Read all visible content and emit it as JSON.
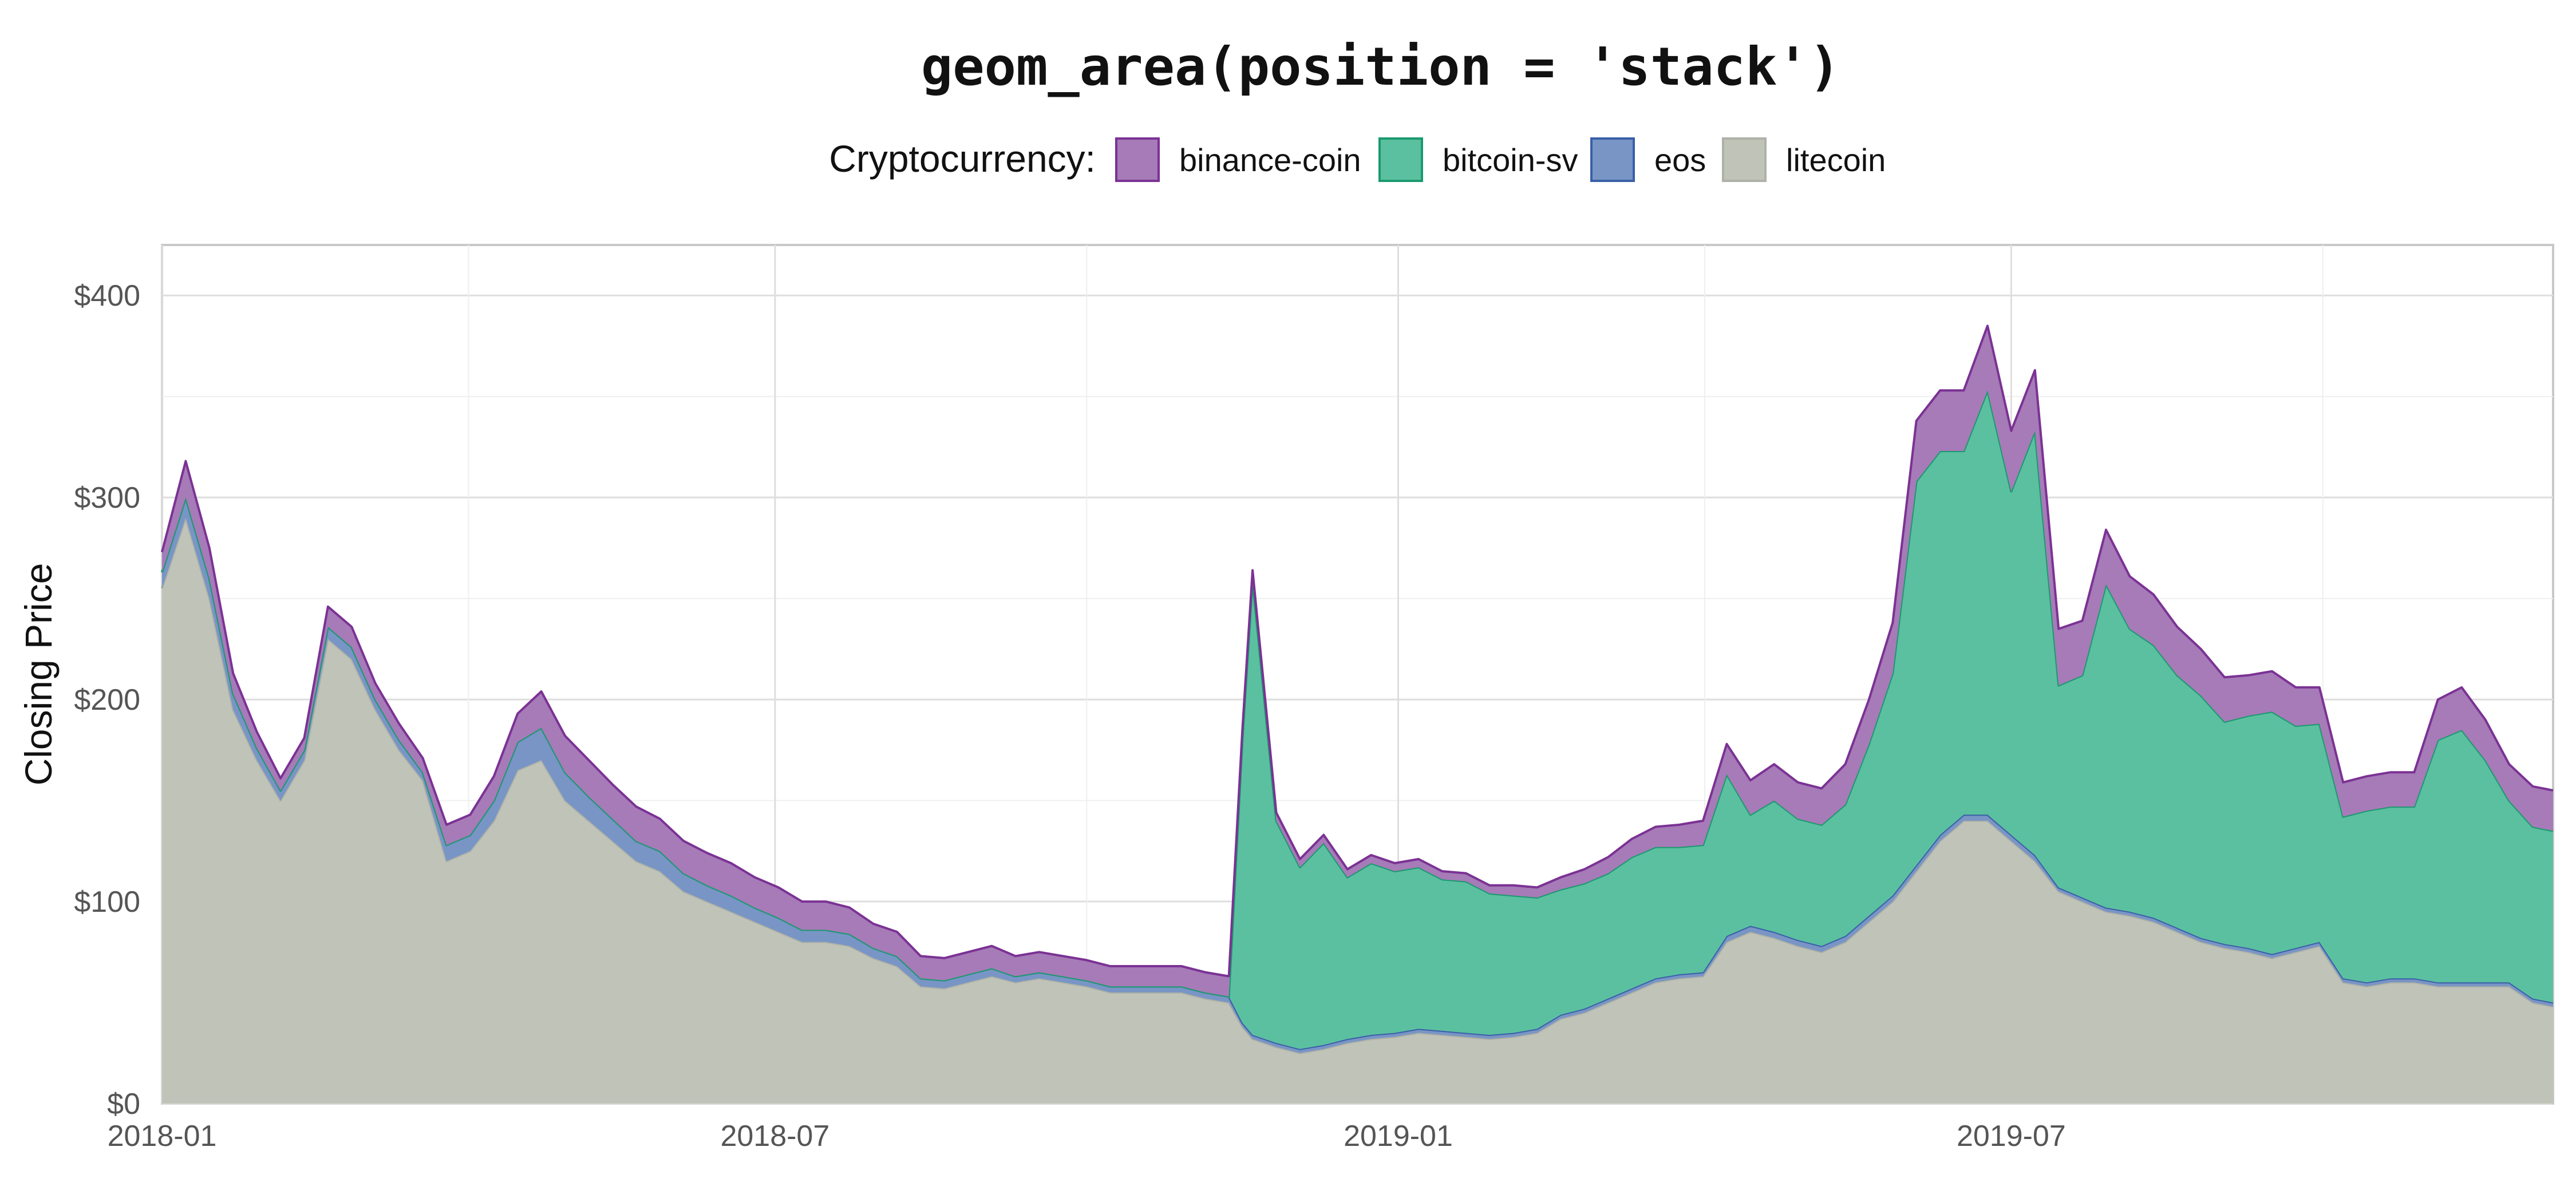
{
  "chart_data": {
    "type": "area",
    "stacked": true,
    "title": "geom_area(position = 'stack')",
    "xlabel": "",
    "ylabel": "Closing Price",
    "x_ticks": [
      "2018-01",
      "2018-07",
      "2019-01",
      "2019-07"
    ],
    "y_ticks": [
      "$0",
      "$100",
      "$200",
      "$300",
      "$400"
    ],
    "xlim": [
      "2018-01-01",
      "2019-12-08"
    ],
    "ylim": [
      0,
      425
    ],
    "grid": true,
    "legend": {
      "title": "Cryptocurrency:",
      "position": "top"
    },
    "x": [
      "2018-01-01",
      "2018-01-08",
      "2018-01-15",
      "2018-01-22",
      "2018-01-29",
      "2018-02-05",
      "2018-02-12",
      "2018-02-19",
      "2018-02-26",
      "2018-03-05",
      "2018-03-12",
      "2018-03-19",
      "2018-03-26",
      "2018-04-02",
      "2018-04-09",
      "2018-04-16",
      "2018-04-23",
      "2018-04-30",
      "2018-05-07",
      "2018-05-14",
      "2018-05-21",
      "2018-05-28",
      "2018-06-04",
      "2018-06-11",
      "2018-06-18",
      "2018-06-25",
      "2018-07-02",
      "2018-07-09",
      "2018-07-16",
      "2018-07-23",
      "2018-07-30",
      "2018-08-06",
      "2018-08-13",
      "2018-08-20",
      "2018-08-27",
      "2018-09-03",
      "2018-09-10",
      "2018-09-17",
      "2018-09-24",
      "2018-10-01",
      "2018-10-08",
      "2018-10-15",
      "2018-10-22",
      "2018-10-29",
      "2018-11-05",
      "2018-11-12",
      "2018-11-16",
      "2018-11-19",
      "2018-11-26",
      "2018-12-03",
      "2018-12-10",
      "2018-12-17",
      "2018-12-24",
      "2018-12-31",
      "2019-01-07",
      "2019-01-14",
      "2019-01-21",
      "2019-01-28",
      "2019-02-04",
      "2019-02-11",
      "2019-02-18",
      "2019-02-25",
      "2019-03-04",
      "2019-03-11",
      "2019-03-18",
      "2019-03-25",
      "2019-04-01",
      "2019-04-08",
      "2019-04-15",
      "2019-04-22",
      "2019-04-29",
      "2019-05-06",
      "2019-05-13",
      "2019-05-20",
      "2019-05-27",
      "2019-06-03",
      "2019-06-10",
      "2019-06-17",
      "2019-06-24",
      "2019-07-01",
      "2019-07-08",
      "2019-07-15",
      "2019-07-22",
      "2019-07-29",
      "2019-08-05",
      "2019-08-12",
      "2019-08-19",
      "2019-08-26",
      "2019-09-02",
      "2019-09-09",
      "2019-09-16",
      "2019-09-23",
      "2019-09-30",
      "2019-10-07",
      "2019-10-14",
      "2019-10-21",
      "2019-10-28",
      "2019-11-04",
      "2019-11-11",
      "2019-11-18",
      "2019-11-25",
      "2019-12-02",
      "2019-12-08"
    ],
    "series": [
      {
        "name": "litecoin",
        "values": [
          255,
          290,
          250,
          195,
          170,
          150,
          170,
          230,
          220,
          195,
          175,
          160,
          120,
          125,
          140,
          165,
          170,
          150,
          140,
          130,
          120,
          115,
          105,
          100,
          95,
          90,
          85,
          80,
          80,
          78,
          72,
          68,
          58,
          57,
          60,
          63,
          60,
          62,
          60,
          58,
          55,
          55,
          55,
          55,
          52,
          50,
          38,
          32,
          28,
          25,
          27,
          30,
          32,
          33,
          35,
          34,
          33,
          32,
          33,
          35,
          42,
          45,
          50,
          55,
          60,
          62,
          63,
          80,
          85,
          82,
          78,
          75,
          80,
          90,
          100,
          115,
          130,
          140,
          140,
          130,
          120,
          105,
          100,
          95,
          93,
          90,
          85,
          80,
          77,
          75,
          72,
          75,
          78,
          60,
          58,
          60,
          60,
          58,
          58,
          58,
          58,
          50,
          48
        ]
      },
      {
        "name": "eos",
        "values": [
          8,
          10,
          10,
          8,
          6,
          5,
          5,
          6,
          6,
          5,
          5,
          4,
          8,
          8,
          10,
          14,
          16,
          14,
          12,
          11,
          10,
          10,
          9,
          8,
          8,
          7,
          7,
          6,
          6,
          6,
          5,
          5,
          4,
          4,
          4,
          4,
          3,
          3,
          3,
          3,
          3,
          3,
          3,
          3,
          3,
          3,
          2,
          2,
          2,
          2,
          2,
          2,
          2,
          2,
          2,
          2,
          2,
          2,
          2,
          2,
          2,
          2,
          2,
          2,
          2,
          2,
          2,
          3,
          3,
          3,
          3,
          3,
          3,
          3,
          3,
          3,
          3,
          3,
          3,
          3,
          3,
          2,
          2,
          2,
          2,
          2,
          2,
          2,
          2,
          2,
          2,
          2,
          2,
          2,
          2,
          2,
          2,
          2,
          2,
          2,
          2,
          2,
          2
        ]
      },
      {
        "name": "bitcoin-sv",
        "values": [
          0,
          0,
          0,
          0,
          0,
          0,
          0,
          0,
          0,
          0,
          0,
          0,
          0,
          0,
          0,
          0,
          0,
          0,
          0,
          0,
          0,
          0,
          0,
          0,
          0,
          0,
          0,
          0,
          0,
          0,
          0,
          0,
          0,
          0,
          0,
          0,
          0,
          0,
          0,
          0,
          0,
          0,
          0,
          0,
          0,
          0,
          140,
          225,
          110,
          90,
          100,
          80,
          85,
          80,
          80,
          75,
          75,
          70,
          68,
          65,
          62,
          62,
          62,
          65,
          65,
          63,
          63,
          80,
          55,
          65,
          60,
          60,
          65,
          85,
          110,
          190,
          190,
          180,
          210,
          170,
          210,
          100,
          110,
          160,
          140,
          135,
          125,
          120,
          110,
          115,
          120,
          110,
          108,
          80,
          85,
          85,
          85,
          120,
          125,
          110,
          90,
          85,
          85
        ]
      },
      {
        "name": "binance-coin",
        "values": [
          10,
          18,
          15,
          10,
          8,
          6,
          6,
          10,
          10,
          8,
          8,
          7,
          10,
          10,
          12,
          14,
          18,
          18,
          18,
          17,
          17,
          16,
          16,
          16,
          16,
          15,
          15,
          14,
          14,
          13,
          12,
          12,
          11,
          11,
          11,
          11,
          10,
          10,
          10,
          10,
          10,
          10,
          10,
          10,
          10,
          10,
          5,
          5,
          4,
          4,
          4,
          4,
          4,
          4,
          4,
          4,
          4,
          4,
          5,
          5,
          6,
          7,
          8,
          9,
          10,
          11,
          12,
          15,
          17,
          18,
          18,
          18,
          20,
          22,
          25,
          30,
          30,
          30,
          32,
          30,
          30,
          28,
          27,
          27,
          26,
          25,
          24,
          23,
          22,
          20,
          20,
          19,
          18,
          17,
          17,
          17,
          17,
          20,
          21,
          20,
          18,
          20,
          20
        ]
      }
    ],
    "colors": {
      "binance-coin": {
        "fill": "#a67bb8",
        "stroke": "#7b3294"
      },
      "bitcoin-sv": {
        "fill": "#5bc0a0",
        "stroke": "#1a9a6e"
      },
      "eos": {
        "fill": "#7895c5",
        "stroke": "#3a5fa8"
      },
      "litecoin": {
        "fill": "#c0c3b8",
        "stroke": "#aeb1a6"
      }
    },
    "legend_order": [
      "binance-coin",
      "bitcoin-sv",
      "eos",
      "litecoin"
    ]
  }
}
